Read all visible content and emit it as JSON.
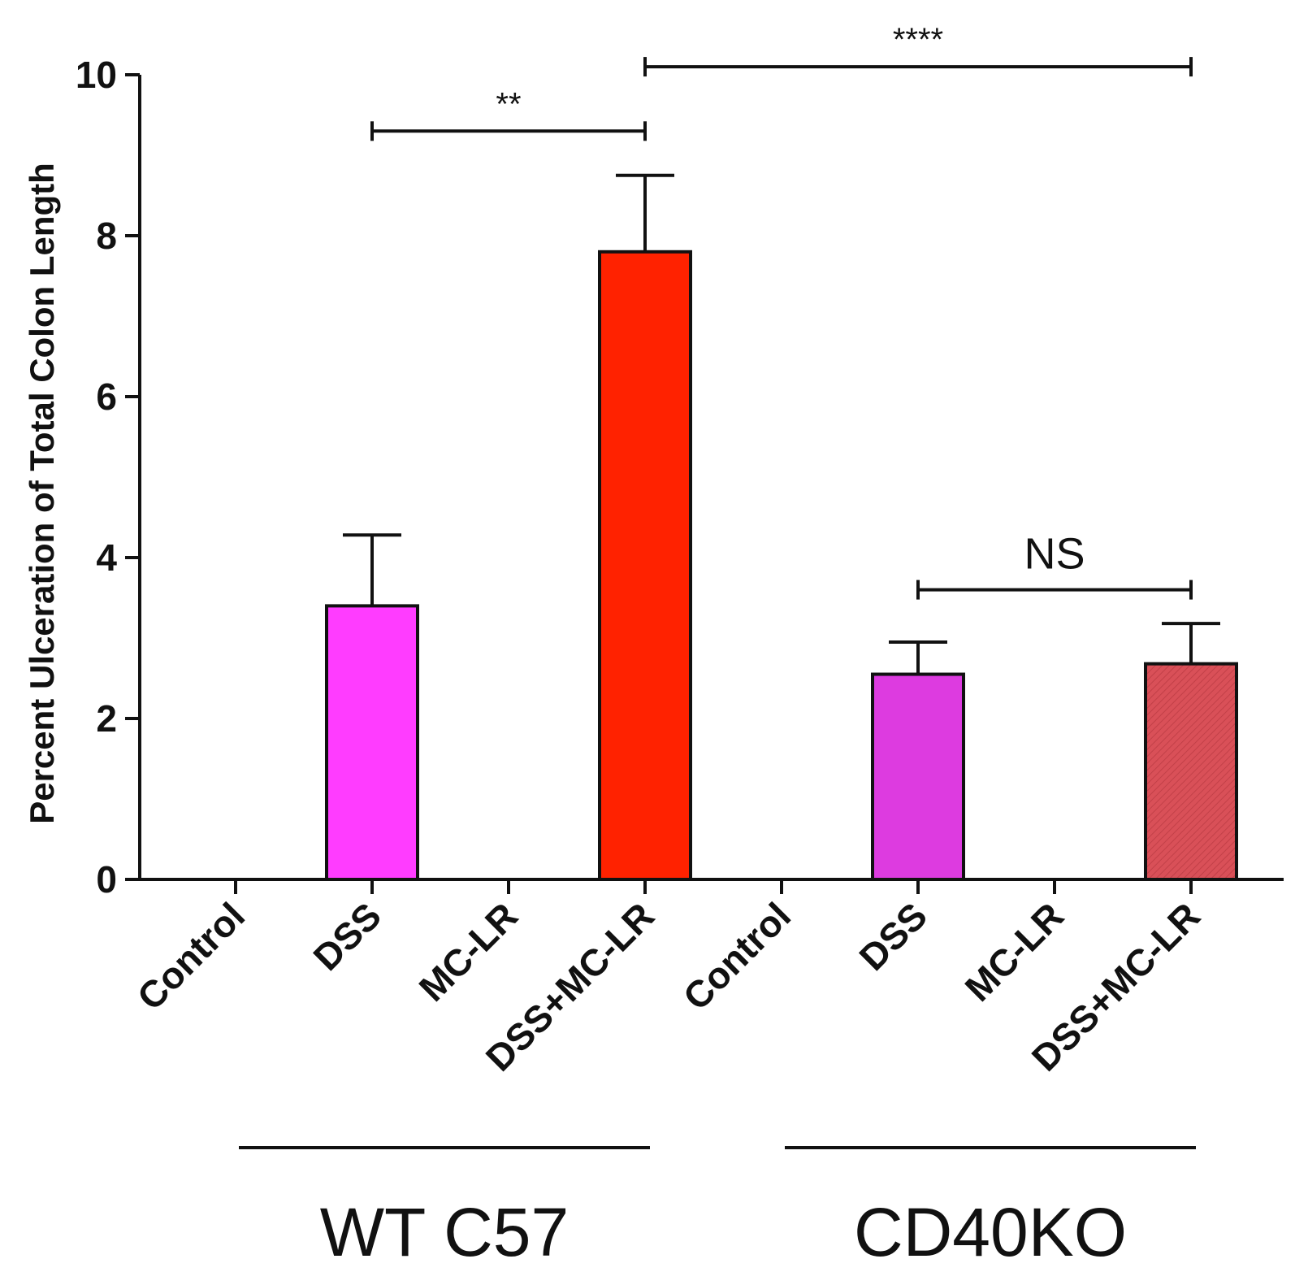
{
  "chart_data": {
    "type": "bar",
    "ylabel": "Percent Ulceration of Total Colon Length",
    "xlabel": "",
    "ylim": [
      0,
      10
    ],
    "yticks": [
      0,
      2,
      4,
      6,
      8,
      10
    ],
    "categories": [
      "Control",
      "DSS",
      "MC-LR",
      "DSS+MC-LR",
      "Control",
      "DSS",
      "MC-LR",
      "DSS+MC-LR"
    ],
    "values": [
      0,
      3.4,
      0,
      7.8,
      0,
      2.55,
      0,
      2.68
    ],
    "errors": [
      0,
      0.88,
      0,
      0.95,
      0,
      0.4,
      0,
      0.5
    ],
    "colors": [
      "#ff3cff",
      "#ff3cff",
      "#ff2200",
      "#ff2200",
      "#dd3be0",
      "#dd3be0",
      "#d95058",
      "#d95058"
    ],
    "hatched": [
      false,
      false,
      false,
      false,
      false,
      false,
      true,
      true
    ],
    "groups": [
      {
        "label": "WT C57",
        "from": 0,
        "to": 3
      },
      {
        "label": "CD40KO",
        "from": 4,
        "to": 7
      }
    ],
    "significance": [
      {
        "from": 1,
        "to": 3,
        "y": 9.3,
        "label": "**"
      },
      {
        "from": 3,
        "to": 7,
        "y": 10.1,
        "label": "****"
      },
      {
        "from": 5,
        "to": 7,
        "y": 3.6,
        "label": "NS"
      }
    ],
    "grid": false,
    "legend": "none"
  }
}
